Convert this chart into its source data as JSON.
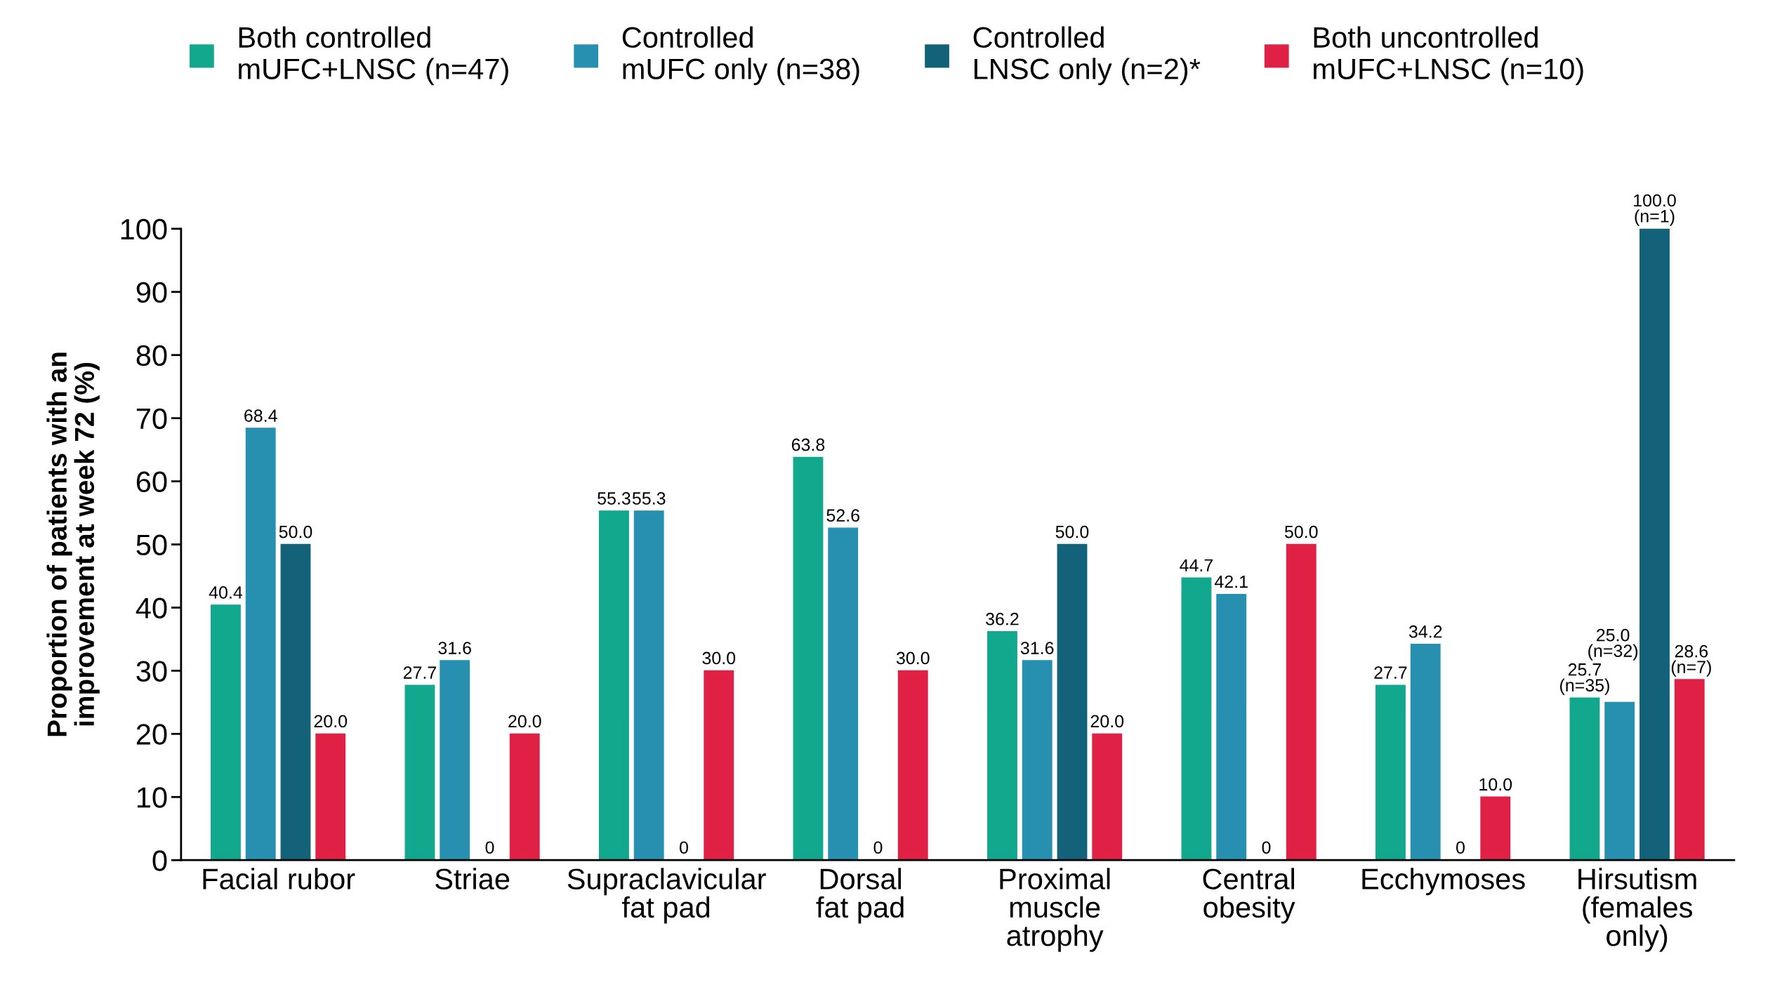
{
  "chart_data": {
    "type": "bar",
    "ylabel": "Proportion of patients with an\nimprovement at week 72 (%)",
    "categories": [
      "Facial rubor",
      "Striae",
      "Supraclavicular\nfat pad",
      "Dorsal\nfat pad",
      "Proximal\nmuscle\natrophy",
      "Central\nobesity",
      "Ecchymoses",
      "Hirsutism\n(females\nonly)"
    ],
    "series": [
      {
        "name": "Both controlled\nmUFC+LNSC (n=47)",
        "color": "#12a88e",
        "values": [
          40.4,
          27.7,
          55.3,
          63.8,
          36.2,
          44.7,
          27.7,
          25.7
        ],
        "value_labels": [
          "40.4",
          "27.7",
          "55.3",
          "63.8",
          "36.2",
          "44.7",
          "27.7",
          "25.7\n(n=35)"
        ]
      },
      {
        "name": "Controlled\nmUFC only (n=38)",
        "color": "#2790b0",
        "values": [
          68.4,
          31.6,
          55.3,
          52.6,
          31.6,
          42.1,
          34.2,
          25.0
        ],
        "value_labels": [
          "68.4",
          "31.6",
          "55.3",
          "52.6",
          "31.6",
          "42.1",
          "34.2",
          "25.0\n(n=32)"
        ]
      },
      {
        "name": "Controlled\nLNSC only (n=2)*",
        "color": "#13627a",
        "values": [
          50.0,
          0,
          0,
          0,
          50.0,
          0,
          0,
          100.0
        ],
        "value_labels": [
          "50.0",
          "0",
          "0",
          "0",
          "50.0",
          "0",
          "0",
          "100.0\n(n=1)"
        ]
      },
      {
        "name": "Both uncontrolled\nmUFC+LNSC (n=10)",
        "color": "#e02045",
        "values": [
          20.0,
          20.0,
          30.0,
          30.0,
          20.0,
          50.0,
          10.0,
          28.6
        ],
        "value_labels": [
          "20.0",
          "20.0",
          "30.0",
          "30.0",
          "20.0",
          "50.0",
          "10.0",
          "28.6\n(n=7)"
        ]
      }
    ],
    "ylim": [
      0,
      100
    ],
    "yticks": [
      0,
      10,
      20,
      30,
      40,
      50,
      60,
      70,
      80,
      90,
      100
    ],
    "grid": false,
    "legend": "top"
  }
}
